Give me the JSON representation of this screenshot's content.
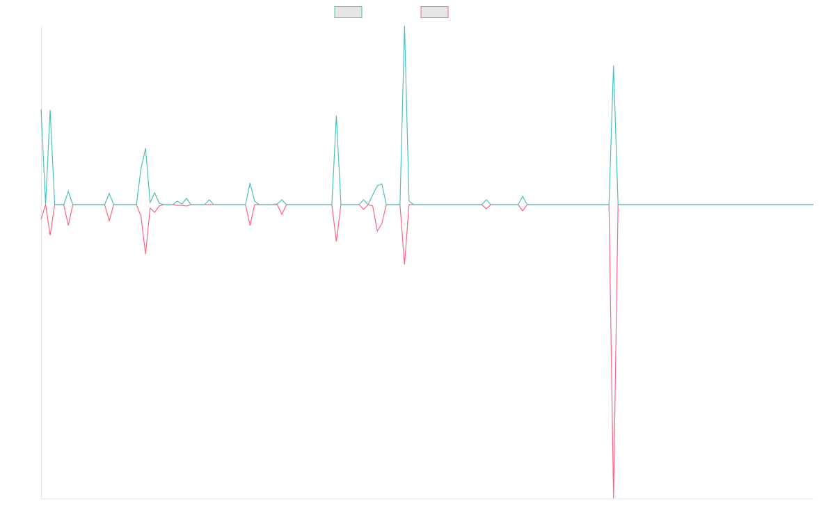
{
  "chart_data": {
    "type": "line",
    "ylim": [
      -422,
      257
    ],
    "series": [
      {
        "color": "#4bc0c0",
        "values": [
          137,
          0,
          136,
          0,
          0,
          0,
          19,
          0,
          0,
          0,
          0,
          0,
          0,
          0,
          0,
          16,
          0,
          0,
          0,
          0,
          0,
          0,
          52,
          81,
          3,
          17,
          2,
          0,
          0,
          0,
          5,
          1,
          9,
          0,
          0,
          0,
          0,
          7,
          0,
          0,
          0,
          0,
          0,
          0,
          0,
          0,
          31,
          5,
          0,
          0,
          0,
          0,
          1,
          7,
          0,
          0,
          0,
          0,
          0,
          0,
          0,
          0,
          0,
          0,
          0,
          128,
          0,
          0,
          0,
          0,
          0,
          7,
          0,
          14,
          27,
          30,
          0,
          0,
          0,
          0,
          257,
          5,
          0,
          0,
          0,
          0,
          0,
          0,
          0,
          0,
          0,
          0,
          0,
          0,
          0,
          0,
          0,
          0,
          7,
          0,
          0,
          0,
          0,
          0,
          0,
          0,
          12,
          0,
          0,
          0,
          0,
          0,
          0,
          0,
          0,
          0,
          0,
          0,
          0,
          0,
          0,
          0,
          0,
          0,
          0,
          0,
          200,
          0,
          0,
          0,
          0,
          0,
          0,
          0,
          0,
          0,
          0,
          0,
          0,
          0,
          0,
          0,
          0,
          0,
          0,
          0,
          0,
          0,
          0,
          0,
          0,
          0,
          0,
          0,
          0,
          0,
          0,
          0,
          0,
          0,
          0,
          0,
          0,
          0,
          0,
          0,
          0,
          0,
          0,
          0,
          0
        ]
      },
      {
        "color": "#ff6384",
        "values": [
          -21,
          0,
          -44,
          0,
          0,
          0,
          -30,
          0,
          0,
          0,
          0,
          0,
          0,
          0,
          0,
          -23,
          0,
          0,
          0,
          0,
          0,
          0,
          -17,
          -71,
          -5,
          -11,
          -2,
          0,
          0,
          0,
          -1,
          -1,
          -2,
          0,
          0,
          0,
          0,
          0,
          0,
          0,
          0,
          0,
          0,
          0,
          0,
          0,
          -30,
          0,
          0,
          0,
          0,
          0,
          0,
          -14,
          0,
          0,
          0,
          0,
          0,
          0,
          0,
          0,
          0,
          0,
          0,
          -53,
          0,
          0,
          0,
          0,
          0,
          -7,
          0,
          -2,
          -38,
          -27,
          0,
          0,
          0,
          0,
          -86,
          0,
          0,
          0,
          0,
          0,
          0,
          0,
          0,
          0,
          0,
          0,
          0,
          0,
          0,
          0,
          0,
          0,
          -6,
          0,
          0,
          0,
          0,
          0,
          0,
          0,
          -9,
          0,
          0,
          0,
          0,
          0,
          0,
          0,
          0,
          0,
          0,
          0,
          0,
          0,
          0,
          0,
          0,
          0,
          0,
          0,
          -422,
          0,
          0,
          0,
          0,
          0,
          0,
          0,
          0,
          0,
          0,
          0,
          0,
          0,
          0,
          0,
          0,
          0,
          0,
          0,
          0,
          0,
          0,
          0,
          0,
          0,
          0,
          0,
          0,
          0,
          0,
          0,
          0,
          0,
          0,
          0,
          0,
          0,
          0,
          0,
          0,
          0,
          0,
          0,
          0
        ]
      }
    ]
  }
}
